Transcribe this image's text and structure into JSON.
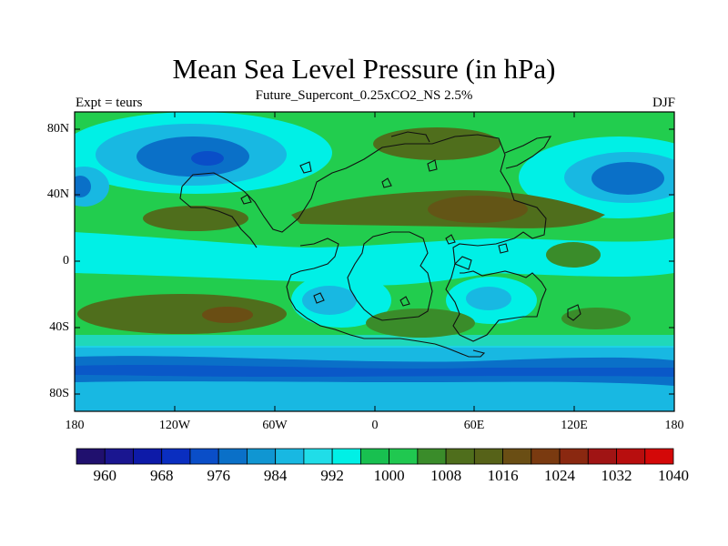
{
  "title": "Mean Sea Level Pressure (in hPa)",
  "subtitle": "Future_Supercont_0.25xCO2_NS 2.5%",
  "left_label": "Expt = teurs",
  "right_label": "DJF",
  "y_ticks": [
    "80N",
    "40N",
    "0",
    "40S",
    "80S"
  ],
  "x_ticks": [
    "180",
    "120W",
    "60W",
    "0",
    "60E",
    "120E",
    "180"
  ],
  "colorbar_labels": [
    "960",
    "968",
    "976",
    "984",
    "992",
    "1000",
    "1008",
    "1016",
    "1024",
    "1032",
    "1040"
  ],
  "colorbar_colors": [
    "#20106e",
    "#1a1690",
    "#0d1aa8",
    "#0a2ec0",
    "#0a4ec8",
    "#0a70c8",
    "#1096d2",
    "#18b8e2",
    "#20dde8",
    "#00f0e6",
    "#18c050",
    "#20c850",
    "#3a8c2a",
    "#4f6e1c",
    "#566218",
    "#6a4e14",
    "#7a3a10",
    "#8a2810",
    "#a01414",
    "#b80e0e",
    "#d40808"
  ],
  "map": {
    "lon_range": [
      -180,
      180
    ],
    "lat_range": [
      -90,
      90
    ],
    "background_color": "#20d050",
    "coastline_color": "#111111"
  }
}
